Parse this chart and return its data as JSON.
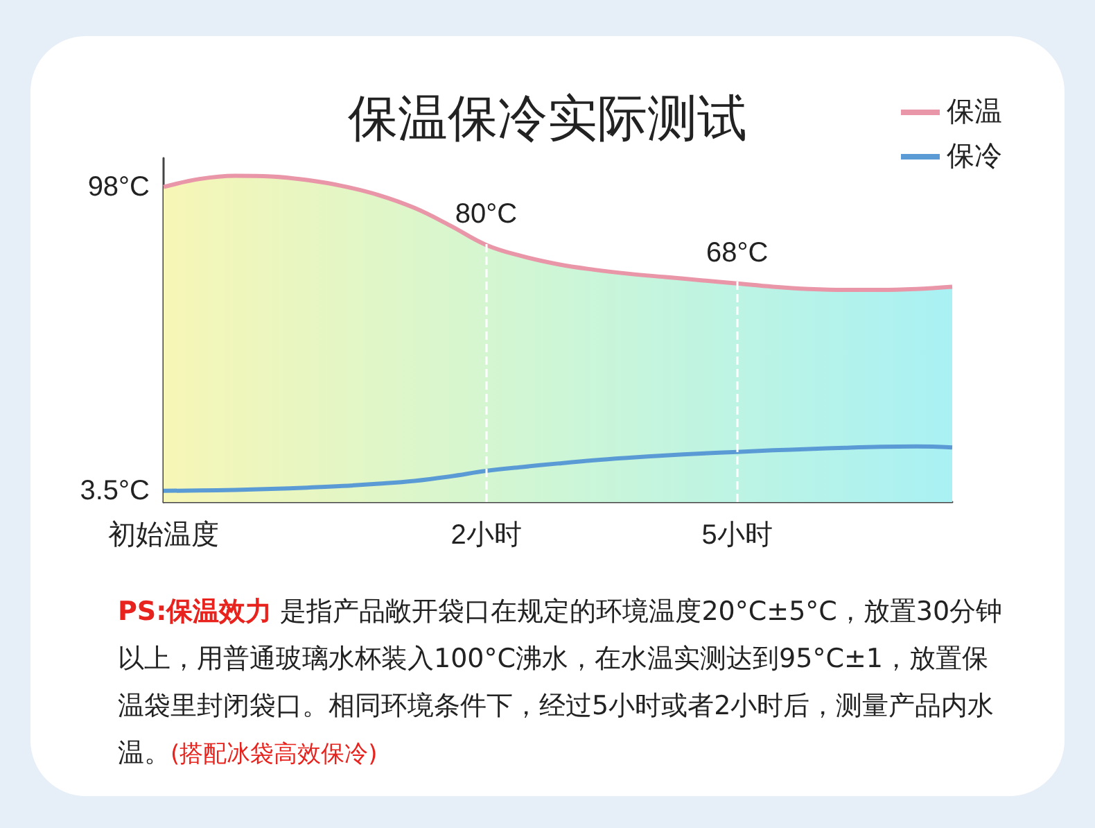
{
  "chart_data": {
    "type": "line",
    "title": "保温保冷实际测试",
    "categories": [
      "初始温度",
      null,
      null,
      null,
      null,
      null,
      null,
      null,
      null,
      "2小时",
      null,
      null,
      null,
      null,
      null,
      null,
      "5小时",
      null,
      null,
      null,
      null,
      null,
      null
    ],
    "ylim": [
      0,
      107
    ],
    "yticks": [
      {
        "value": 3.5,
        "label": "3.5°C"
      },
      {
        "value": 98,
        "label": "98°C"
      }
    ],
    "series": [
      {
        "name": "保温",
        "type": "area",
        "color": "#e996a8",
        "values": [
          98,
          100.5,
          101.5,
          101.3,
          100.2,
          98.3,
          95.5,
          91.5,
          86,
          80,
          76.5,
          74,
          72.3,
          71,
          70,
          69,
          68,
          67,
          66.3,
          66,
          66,
          66.3,
          67
        ],
        "value_labels": [
          null,
          null,
          null,
          null,
          null,
          null,
          null,
          null,
          null,
          "80°C",
          null,
          null,
          null,
          null,
          null,
          null,
          "68°C",
          null,
          null,
          null,
          null,
          null,
          null
        ]
      },
      {
        "name": "保冷",
        "color": "#5b9bd5",
        "values": [
          3.5,
          3.6,
          3.8,
          4.1,
          4.5,
          5,
          5.7,
          6.6,
          8,
          9.7,
          10.9,
          12,
          13,
          13.8,
          14.5,
          15.1,
          15.6,
          16.1,
          16.5,
          16.9,
          17.2,
          17.3,
          17
        ]
      }
    ],
    "ref_lines": [
      {
        "axis": "x",
        "value": "2小时",
        "color": "#ffffff",
        "line_style": "dashed"
      },
      {
        "axis": "x",
        "value": "5小时",
        "color": "#ffffff",
        "line_style": "dashed"
      }
    ],
    "legend": "top right",
    "grid": false,
    "marker": "none",
    "annotations": [
      "PS:保温效力",
      "是指产品敞开袋口在规定的环境温度20°C±5°C，放置30分钟以上，用普通玻璃水杯装入100°C沸水，在水温实测达到95°C±1，放置保温袋里封闭袋口。相同环境条件下，经过5小时或者2小时后，测量产品内水温。",
      "(搭配冰袋高效保冷)"
    ]
  }
}
